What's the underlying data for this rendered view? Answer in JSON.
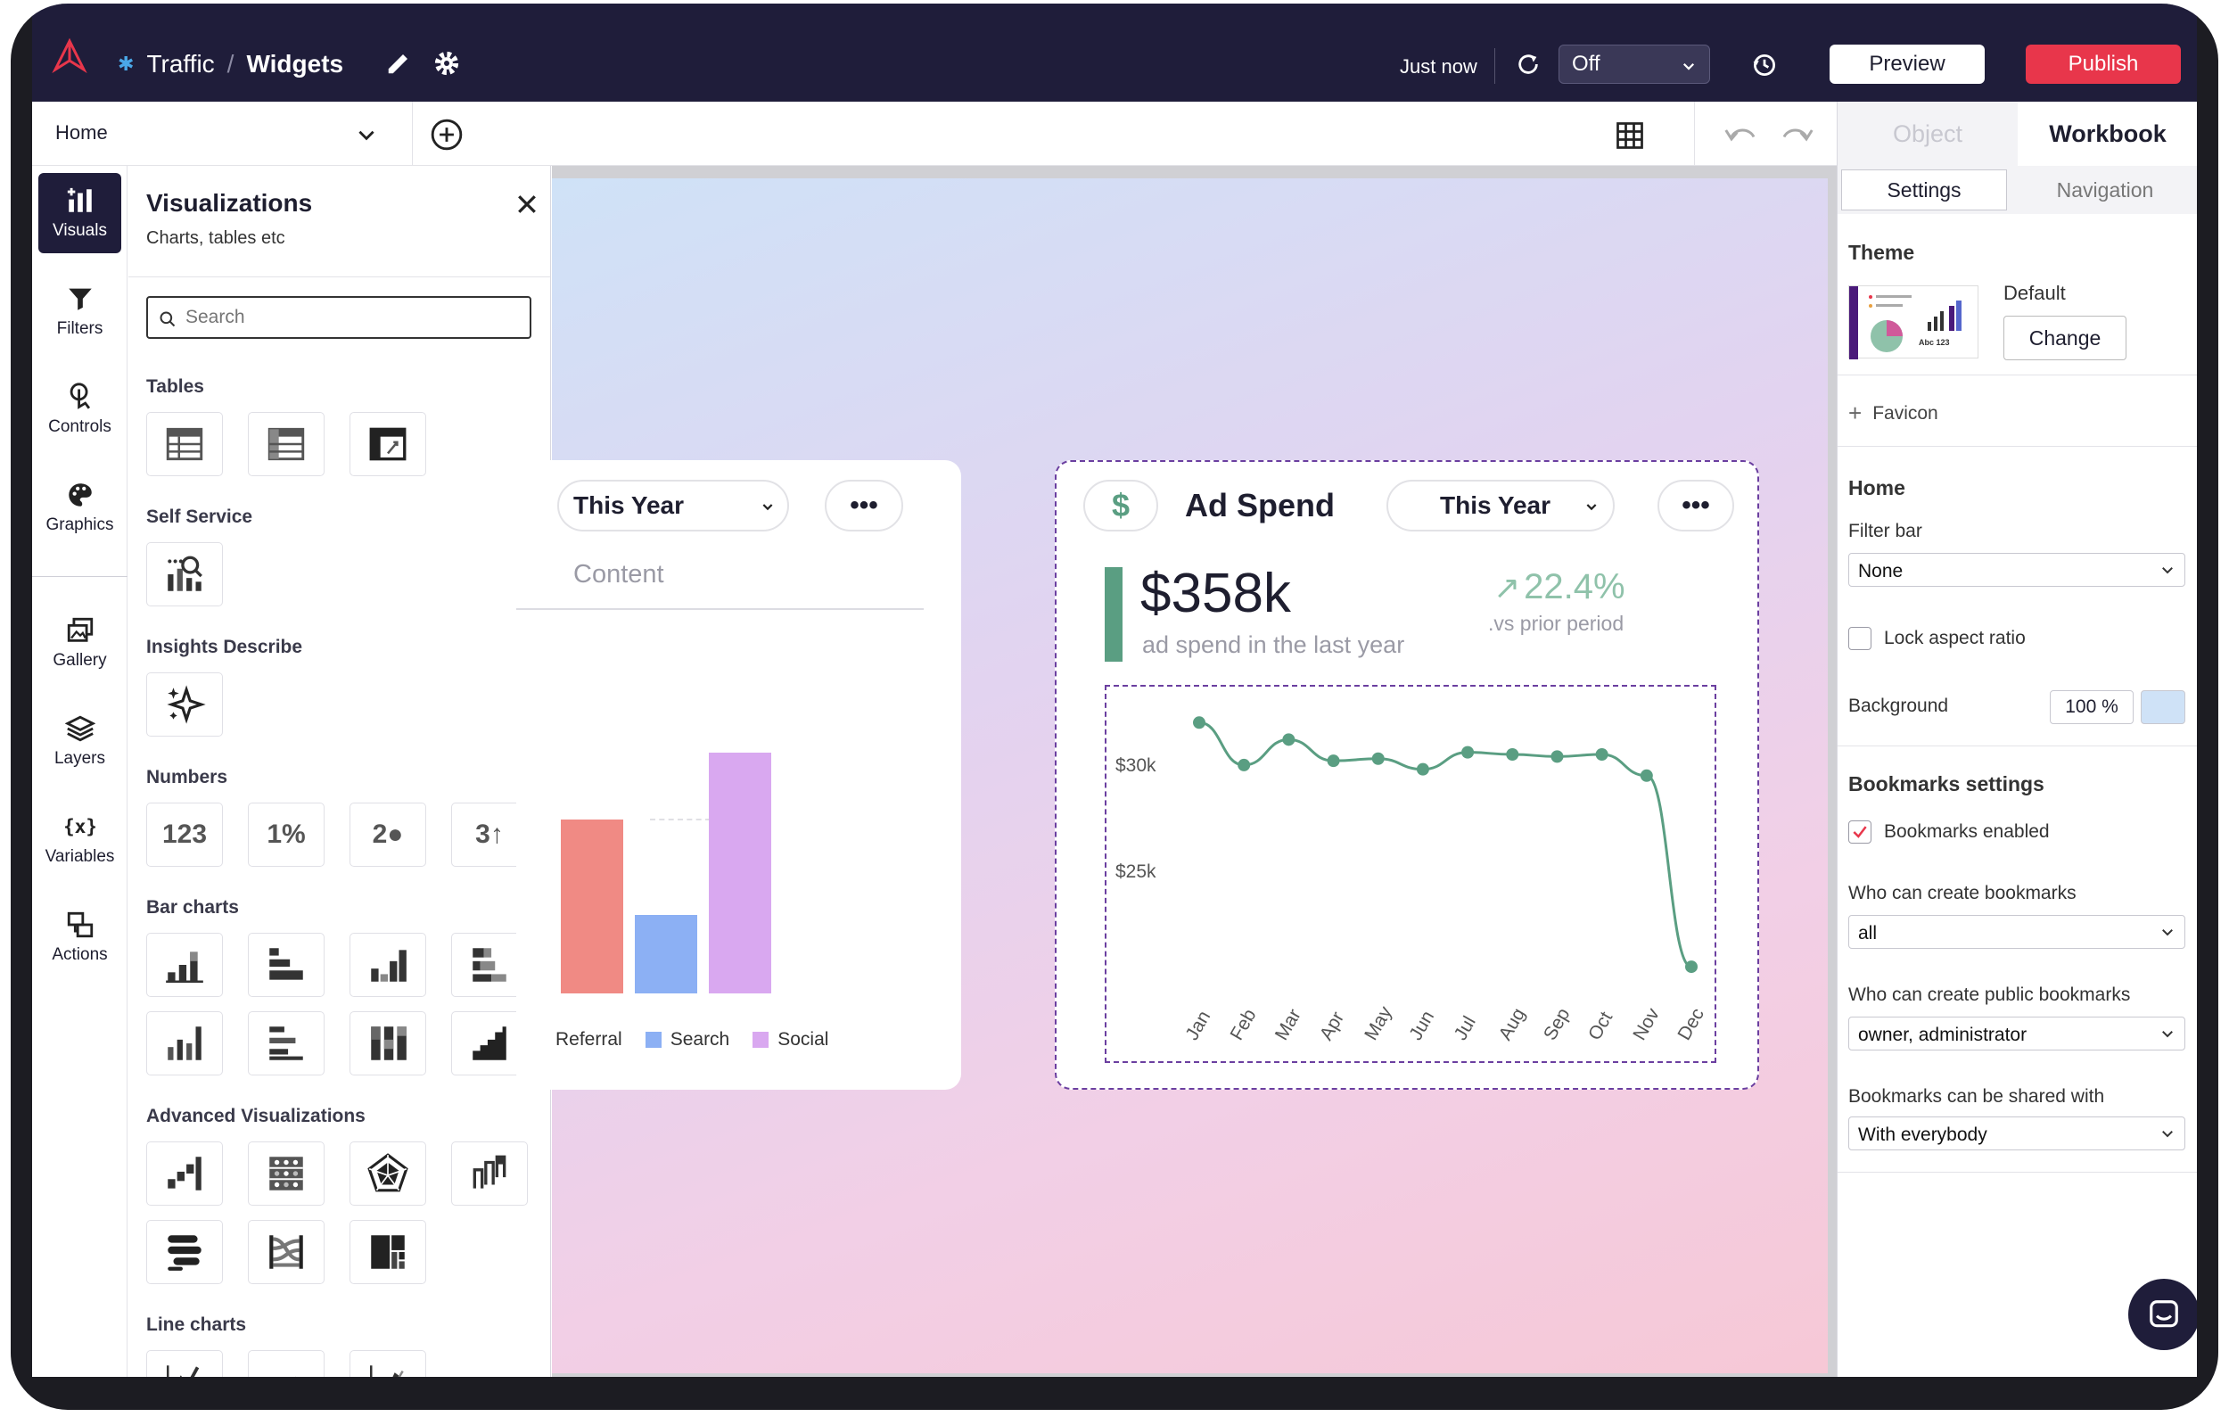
{
  "topbar": {
    "breadcrumb_root": "Traffic",
    "breadcrumb_sep": "/",
    "breadcrumb_page": "Widgets",
    "saved_status": "Just now",
    "refresh_select": "Off",
    "preview_label": "Preview",
    "publish_label": "Publish",
    "colors": {
      "bg": "#1f1d3a",
      "publish": "#e8364b"
    }
  },
  "toolbar": {
    "page_select": "Home"
  },
  "rail": {
    "items": [
      {
        "label": "Visuals",
        "icon": "visuals-icon"
      },
      {
        "label": "Filters",
        "icon": "filter-icon"
      },
      {
        "label": "Controls",
        "icon": "controls-icon"
      },
      {
        "label": "Graphics",
        "icon": "palette-icon"
      },
      {
        "label": "Gallery",
        "icon": "gallery-icon"
      },
      {
        "label": "Layers",
        "icon": "layers-icon"
      },
      {
        "label": "Variables",
        "icon": "variables-icon"
      },
      {
        "label": "Actions",
        "icon": "actions-icon"
      }
    ]
  },
  "viz_panel": {
    "title": "Visualizations",
    "subtitle": "Charts, tables etc",
    "search_placeholder": "Search",
    "sections": {
      "tables": "Tables",
      "self_service": "Self Service",
      "insights": "Insights Describe",
      "numbers": "Numbers",
      "bar_charts": "Bar charts",
      "advanced": "Advanced Visualizations",
      "line_charts": "Line charts"
    },
    "number_tiles": [
      "123",
      "1%",
      "2●",
      "3↑"
    ]
  },
  "left_card": {
    "period_select": "This Year",
    "tab_label": "Content",
    "legend": [
      "Referral",
      "Search",
      "Social"
    ],
    "colors": [
      "#f08a84",
      "#8cb0f4",
      "#d9a8f0"
    ]
  },
  "ad_card": {
    "icon": "dollar-icon",
    "title": "Ad Spend",
    "period_select": "This Year",
    "kpi_value": "$358k",
    "kpi_caption": "ad spend in the last year",
    "change_value": "22.4%",
    "change_caption": ".vs prior period",
    "accent": "#5a9e82"
  },
  "chart_data": {
    "type": "line",
    "categories": [
      "Jan",
      "Feb",
      "Mar",
      "Apr",
      "May",
      "Jun",
      "Jul",
      "Aug",
      "Sep",
      "Oct",
      "Nov",
      "Dec"
    ],
    "series": [
      {
        "values": [
          32000,
          30000,
          31200,
          30200,
          30300,
          29800,
          30600,
          30500,
          30400,
          30500,
          29500,
          20500
        ]
      }
    ],
    "y_ticks": [
      "$30k",
      "$25k"
    ],
    "yaxis_values": [
      30000,
      25000
    ],
    "color": "#5a9e82"
  },
  "right_panel": {
    "tabs": [
      "Object",
      "Workbook"
    ],
    "subtabs": [
      "Settings",
      "Navigation"
    ],
    "theme_heading": "Theme",
    "theme_name": "Default",
    "change_label": "Change",
    "favicon_label": "Favicon",
    "home_heading": "Home",
    "filter_bar_label": "Filter bar",
    "filter_bar_value": "None",
    "lock_aspect_label": "Lock aspect ratio",
    "background_label": "Background",
    "background_value": "100 %",
    "background_color": "#cfe2f7",
    "bookmarks_heading": "Bookmarks settings",
    "bookmarks_enabled_label": "Bookmarks enabled",
    "who_create_label": "Who can create bookmarks",
    "who_create_value": "all",
    "who_public_label": "Who can create public bookmarks",
    "who_public_value": "owner, administrator",
    "shared_label": "Bookmarks can be shared with",
    "shared_value": "With everybody"
  }
}
